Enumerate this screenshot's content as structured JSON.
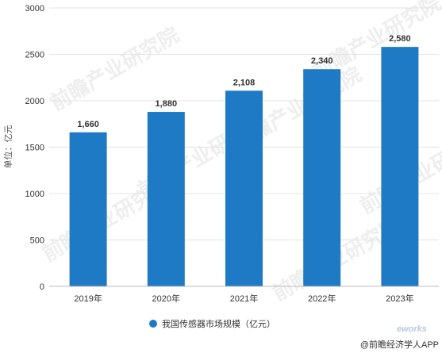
{
  "chart_data": {
    "type": "bar",
    "categories": [
      "2019年",
      "2020年",
      "2021年",
      "2022年",
      "2023年"
    ],
    "series": [
      {
        "name": "我国传感器市场规模（亿元）",
        "values": [
          1660,
          1880,
          2108,
          2340,
          2580
        ]
      }
    ],
    "data_labels": [
      "1,660",
      "1,880",
      "2,108",
      "2,340",
      "2,580"
    ],
    "ylabel": "单位：亿元",
    "xlabel": "",
    "ylim": [
      0,
      3000
    ],
    "yticks": [
      0,
      500,
      1000,
      1500,
      2000,
      2500,
      3000
    ],
    "grid": true,
    "legend_position": "bottom",
    "bar_color": "#1f7ac6"
  },
  "watermark": {
    "text": "前瞻产业研究院",
    "color": "#eeeeee"
  },
  "credit": {
    "text": "@前瞻经济学人APP",
    "logo_text": "works"
  }
}
